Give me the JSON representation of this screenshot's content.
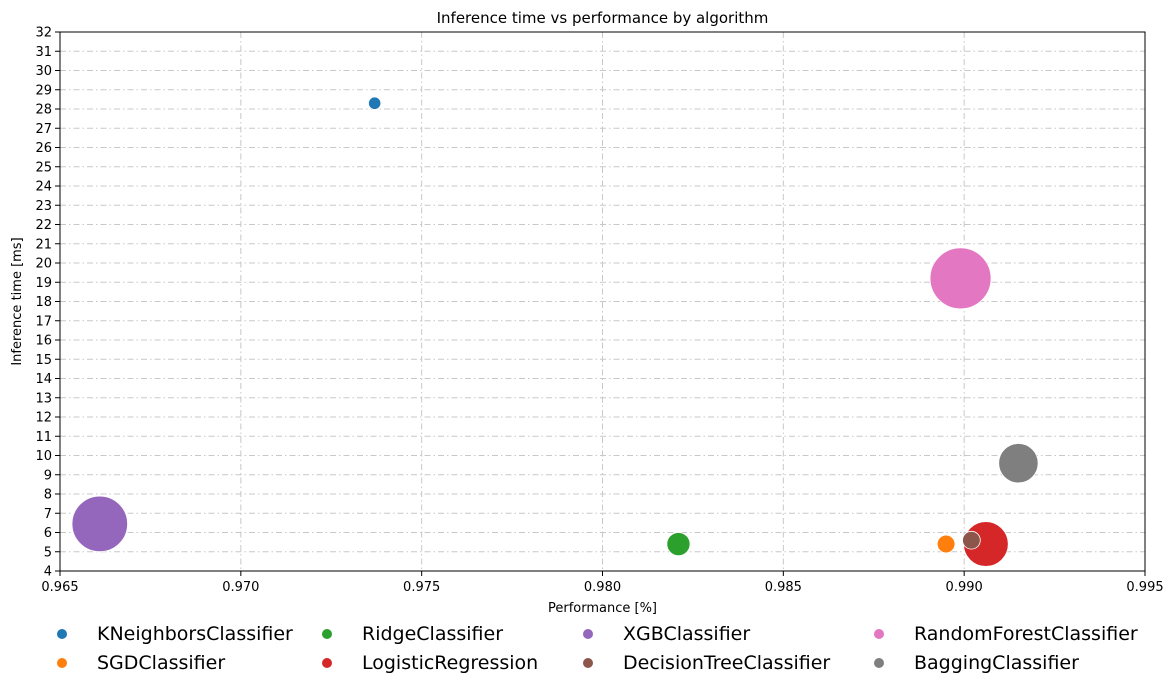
{
  "chart_data": {
    "type": "scatter",
    "title": "Inference time vs performance by algorithm",
    "xlabel": "Performance [%]",
    "ylabel": "Inference time [ms]",
    "xlim": [
      0.965,
      0.995
    ],
    "ylim": [
      4,
      32
    ],
    "x_ticks": [
      "0.965",
      "0.970",
      "0.975",
      "0.980",
      "0.985",
      "0.990",
      "0.995"
    ],
    "y_ticks": [
      "4",
      "5",
      "6",
      "7",
      "8",
      "9",
      "10",
      "11",
      "12",
      "13",
      "14",
      "15",
      "16",
      "17",
      "18",
      "19",
      "20",
      "21",
      "22",
      "23",
      "24",
      "25",
      "26",
      "27",
      "28",
      "29",
      "30",
      "31",
      "32"
    ],
    "grid": true,
    "legend_position": "bottom",
    "series": [
      {
        "name": "KNeighborsClassifier",
        "color": "#1f77b4",
        "x": 0.9737,
        "y": 28.3,
        "size": 1
      },
      {
        "name": "SGDClassifier",
        "color": "#ff7f0e",
        "x": 0.9895,
        "y": 5.4,
        "size": 2
      },
      {
        "name": "RidgeClassifier",
        "color": "#2ca02c",
        "x": 0.9821,
        "y": 5.4,
        "size": 3
      },
      {
        "name": "LogisticRegression",
        "color": "#d62728",
        "x": 0.9906,
        "y": 5.4,
        "size": 7
      },
      {
        "name": "XGBClassifier",
        "color": "#9467bd",
        "x": 0.9661,
        "y": 6.45,
        "size": 9
      },
      {
        "name": "DecisionTreeClassifier",
        "color": "#8c564b",
        "x": 0.9902,
        "y": 5.6,
        "size": 2
      },
      {
        "name": "RandomForestClassifier",
        "color": "#e377c2",
        "x": 0.9899,
        "y": 19.2,
        "size": 10
      },
      {
        "name": "BaggingClassifier",
        "color": "#7f7f7f",
        "x": 0.9915,
        "y": 9.6,
        "size": 6
      }
    ],
    "legend_order": [
      "KNeighborsClassifier",
      "RidgeClassifier",
      "XGBClassifier",
      "RandomForestClassifier",
      "SGDClassifier",
      "LogisticRegression",
      "DecisionTreeClassifier",
      "BaggingClassifier"
    ]
  }
}
